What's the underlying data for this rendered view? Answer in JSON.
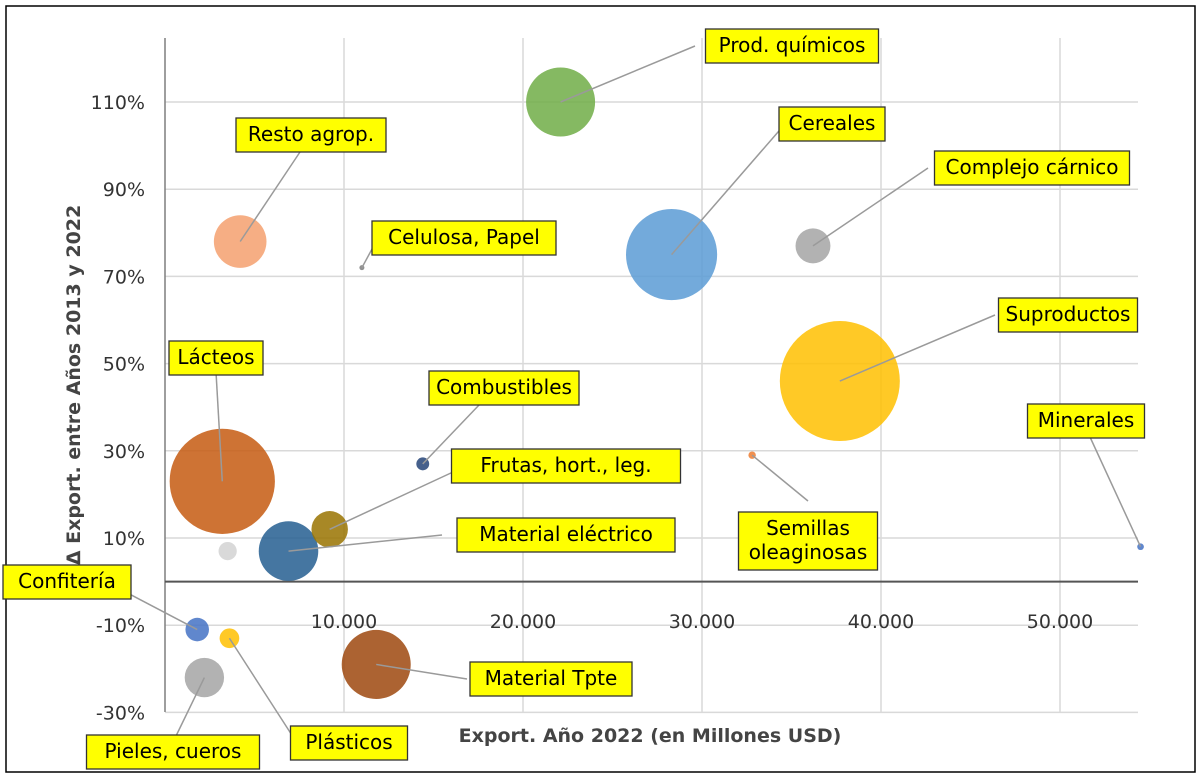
{
  "chart_data": {
    "type": "bubble",
    "title": "",
    "xlabel": "Export. Año 2022 (en Millones USD)",
    "ylabel": "Δ Export. entre Años 2013 y 2022",
    "xlim": [
      -10000,
      55000
    ],
    "ylim": [
      -30,
      122
    ],
    "x_ticks": [
      10000,
      20000,
      30000,
      40000,
      50000
    ],
    "x_tick_labels": [
      "10.000",
      "20.000",
      "30.000",
      "40.000",
      "50.000"
    ],
    "y_ticks": [
      -30,
      -10,
      10,
      30,
      50,
      70,
      90,
      110
    ],
    "y_tick_labels": [
      "-30%",
      "-10%",
      "10%",
      "30%",
      "50%",
      "70%",
      "90%",
      "110%"
    ],
    "grid": true,
    "legend": "none",
    "points": [
      {
        "label": "Suproductos",
        "x": 37700,
        "y": 46,
        "size": 13,
        "color": "#ffc000"
      },
      {
        "label": "Lácteos",
        "x": 3200,
        "y": 23,
        "size": 10,
        "color": "#c55a11"
      },
      {
        "label": "Cereales",
        "x": 28300,
        "y": 75,
        "size": 7.5,
        "color": "#5b9bd5"
      },
      {
        "label": "Prod. químicos",
        "x": 22100,
        "y": 110,
        "size": 4.3,
        "color": "#70ad47"
      },
      {
        "label": "Material Tpte",
        "x": 11800,
        "y": -19,
        "size": 4.3,
        "color": "#9e480e"
      },
      {
        "label": "Material eléctrico",
        "x": 6900,
        "y": 7,
        "size": 3.2,
        "color": "#255e91"
      },
      {
        "label": "Resto agrop.",
        "x": 4200,
        "y": 78,
        "size": 2.5,
        "color": "#f4a06e"
      },
      {
        "label": "Pieles, cueros",
        "x": 2200,
        "y": -22,
        "size": 1.4,
        "color": "#a5a5a5"
      },
      {
        "label": "Frutas, hort., leg.",
        "x": 9200,
        "y": 12,
        "size": 1.2,
        "color": "#997300"
      },
      {
        "label": "Complejo cárnico",
        "x": 36200,
        "y": 77,
        "size": 1.1,
        "color": "#a5a5a5"
      },
      {
        "label": "Confitería",
        "x": 1800,
        "y": -11,
        "size": 0.5,
        "color": "#4472c4"
      },
      {
        "label": "Plásticos",
        "x": 3600,
        "y": -13,
        "size": 0.35,
        "color": "#ffc000"
      },
      {
        "label": "Combustibles",
        "x": 14400,
        "y": 27,
        "size": 0.15,
        "color": "#264478"
      },
      {
        "label": "Semillas oleaginosas",
        "x": 32800,
        "y": 29,
        "size": 0.05,
        "color": "#ed7d31"
      },
      {
        "label": "Minerales",
        "x": 54500,
        "y": 8,
        "size": 0.04,
        "color": "#4472c4"
      },
      {
        "label": "Celulosa, Papel",
        "x": 11000,
        "y": 72,
        "size": 0.01,
        "color": "#7f7f7f"
      }
    ],
    "extra_points": [
      {
        "x": 3500,
        "y": 7,
        "size": 0.3,
        "color": "#d0d0d0"
      }
    ]
  }
}
